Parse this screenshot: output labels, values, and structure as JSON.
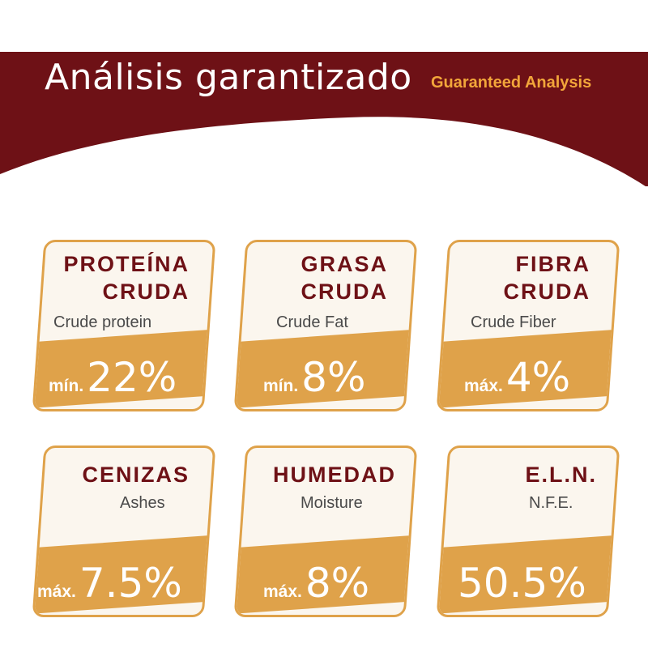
{
  "header": {
    "title": "Análisis garantizado",
    "subtitle": "Guaranteed Analysis",
    "band_color": "#6e1116",
    "accent_color": "#f2a63a"
  },
  "cards": [
    {
      "name_line1": "PROTEÍNA",
      "name_line2": "CRUDA",
      "english": "Crude protein",
      "qualifier": "mín.",
      "value": "22%"
    },
    {
      "name_line1": "GRASA",
      "name_line2": "CRUDA",
      "english": "Crude Fat",
      "qualifier": "mín.",
      "value": "8%"
    },
    {
      "name_line1": "FIBRA",
      "name_line2": "CRUDA",
      "english": "Crude Fiber",
      "qualifier": "máx.",
      "value": "4%"
    },
    {
      "name_line1": "CENIZAS",
      "name_line2": "",
      "english": "Ashes",
      "qualifier": "máx.",
      "value": "7.5%"
    },
    {
      "name_line1": "HUMEDAD",
      "name_line2": "",
      "english": "Moisture",
      "qualifier": "máx.",
      "value": "8%"
    },
    {
      "name_line1": "E.L.N.",
      "name_line2": "",
      "english": "N.F.E.",
      "qualifier": "",
      "value": "50.5%"
    }
  ]
}
